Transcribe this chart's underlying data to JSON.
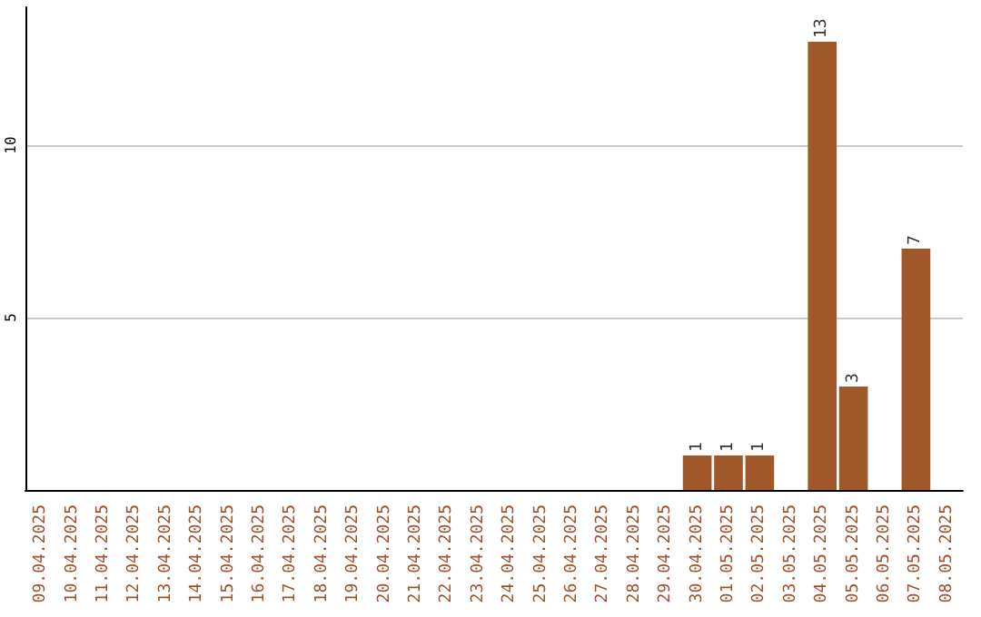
{
  "chart_data": {
    "type": "bar",
    "categories": [
      "09.04.2025",
      "10.04.2025",
      "11.04.2025",
      "12.04.2025",
      "13.04.2025",
      "14.04.2025",
      "15.04.2025",
      "16.04.2025",
      "17.04.2025",
      "18.04.2025",
      "19.04.2025",
      "20.04.2025",
      "21.04.2025",
      "22.04.2025",
      "23.04.2025",
      "24.04.2025",
      "25.04.2025",
      "26.04.2025",
      "27.04.2025",
      "28.04.2025",
      "29.04.2025",
      "30.04.2025",
      "01.05.2025",
      "02.05.2025",
      "03.05.2025",
      "04.05.2025",
      "05.05.2025",
      "06.05.2025",
      "07.05.2025",
      "08.05.2025"
    ],
    "values": [
      0,
      0,
      0,
      0,
      0,
      0,
      0,
      0,
      0,
      0,
      0,
      0,
      0,
      0,
      0,
      0,
      0,
      0,
      0,
      0,
      0,
      1,
      1,
      1,
      0,
      13,
      3,
      0,
      7,
      0
    ],
    "value_labels": [
      null,
      null,
      null,
      null,
      null,
      null,
      null,
      null,
      null,
      null,
      null,
      null,
      null,
      null,
      null,
      null,
      null,
      null,
      null,
      null,
      null,
      "1",
      "1",
      "1",
      null,
      "13",
      "3",
      null,
      "7",
      null
    ],
    "color": "#a0582a",
    "ylim": [
      0,
      14
    ],
    "yticks": [
      5,
      10
    ],
    "grid": "y"
  }
}
